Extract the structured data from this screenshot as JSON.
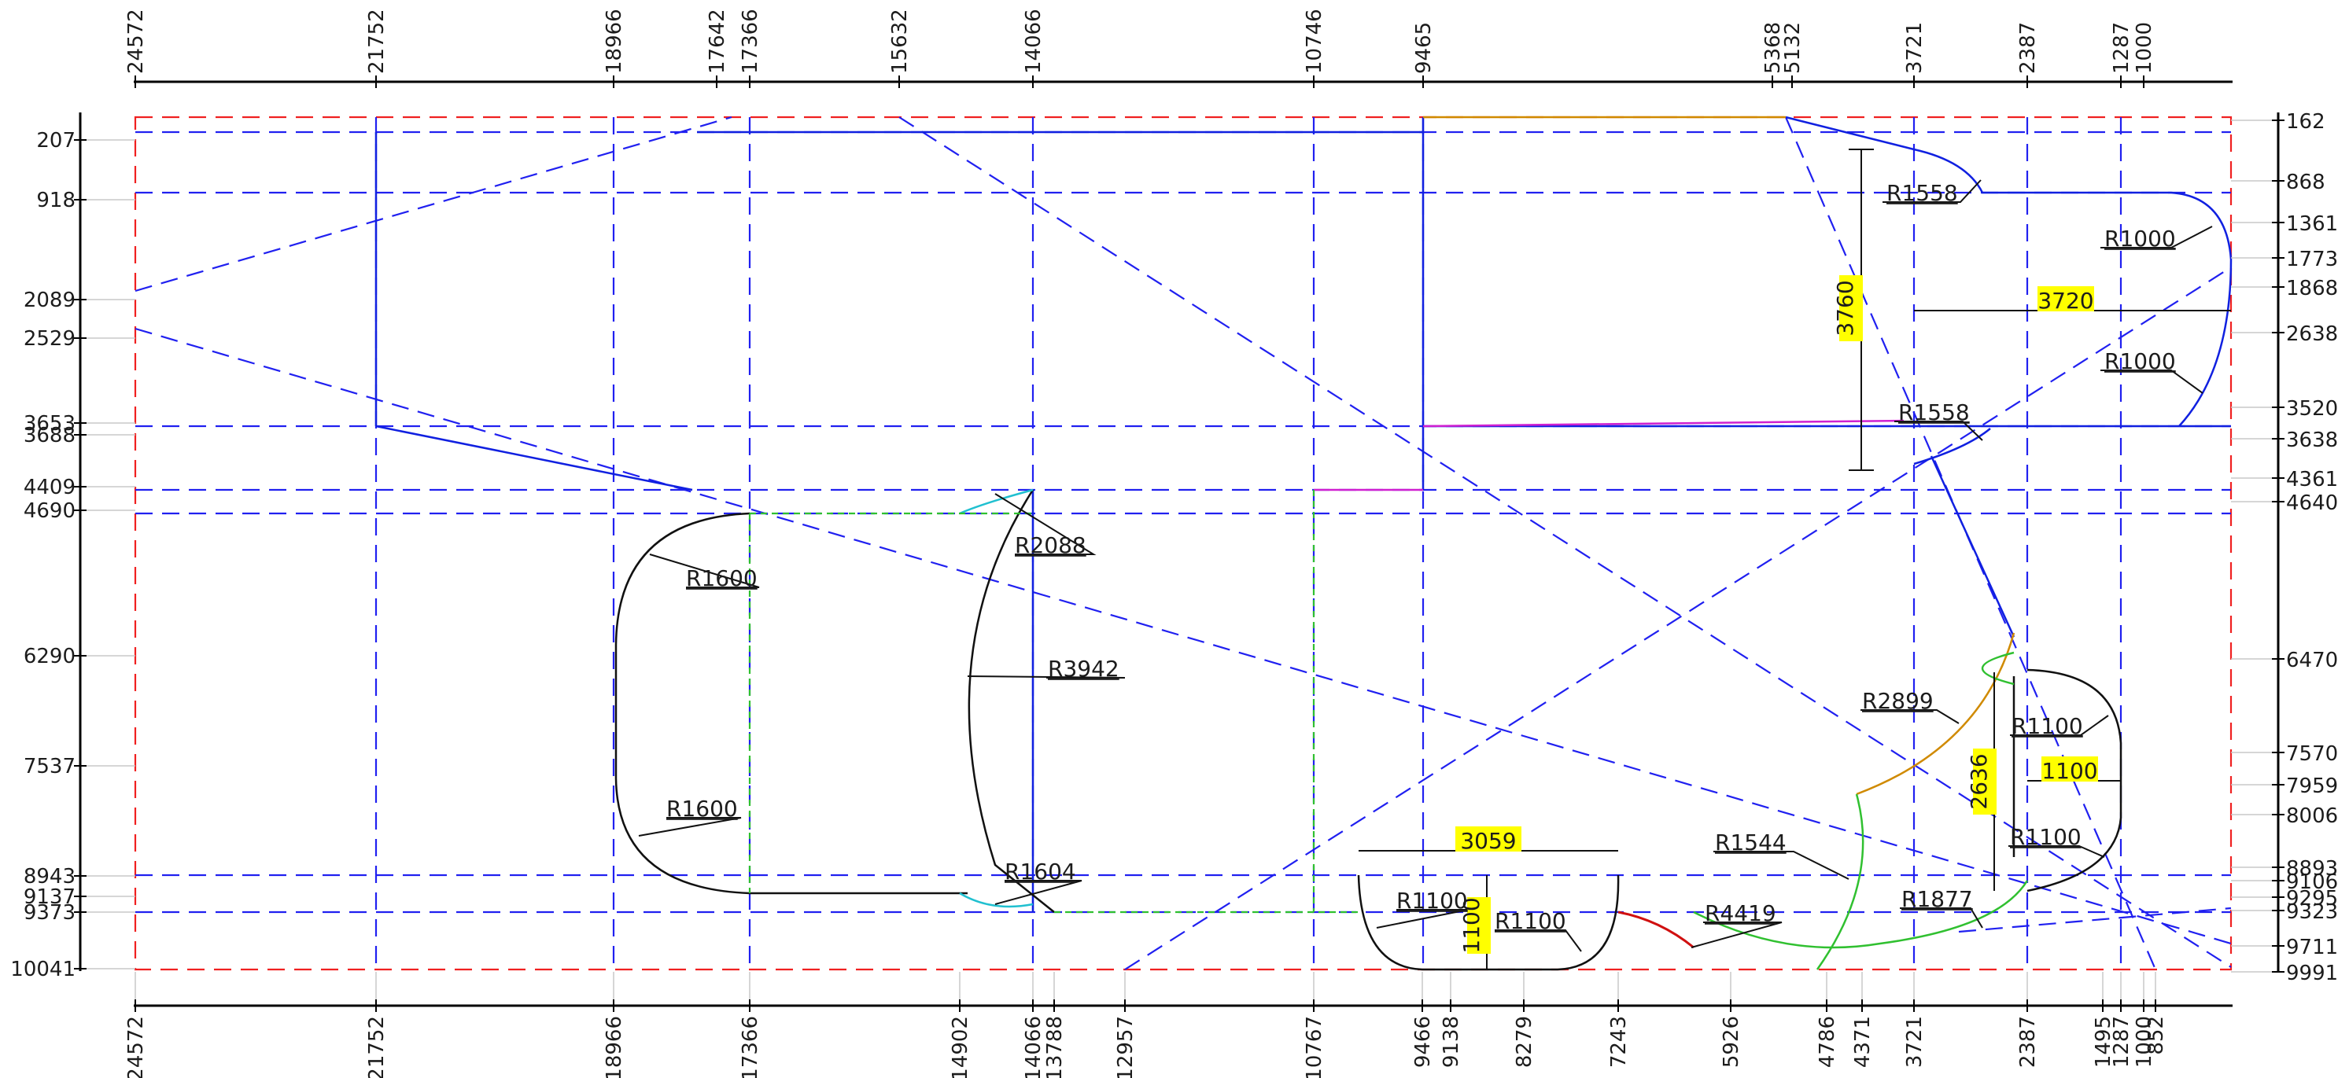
{
  "top_axis_labels": [
    "24572",
    "21752",
    "18966",
    "17642",
    "17366",
    "15632",
    "14066",
    "10746",
    "9465",
    "5368",
    "5132",
    "3721",
    "2387",
    "1287",
    "1000"
  ],
  "bottom_axis_labels": [
    "24572",
    "21752",
    "18966",
    "17366",
    "14902",
    "14066",
    "13788",
    "12957",
    "10767",
    "9466",
    "9138",
    "8279",
    "7243",
    "5926",
    "4786",
    "4371",
    "3721",
    "2387",
    "1495",
    "1287",
    "1000",
    "852"
  ],
  "left_axis_labels": [
    "207",
    "918",
    "2089",
    "2529",
    "3653",
    "3688",
    "4409",
    "4690",
    "6290",
    "7537",
    "8943",
    "9137",
    "9373",
    "10041"
  ],
  "right_axis_labels": [
    "162",
    "868",
    "1361",
    "1773",
    "1868",
    "2638",
    "3520",
    "3638",
    "4361",
    "4640",
    "6470",
    "7570",
    "7959",
    "8006",
    "8893",
    "9106",
    "9295",
    "9323",
    "9711",
    "9991"
  ],
  "radius_labels": [
    "R1558",
    "R1000",
    "R1000",
    "R1558",
    "R1600",
    "R2088",
    "R3942",
    "R1600",
    "R1604",
    "R1100",
    "R1100",
    "R2899",
    "R1100",
    "R1100",
    "R1544",
    "R4419",
    "R1877"
  ],
  "dimension_labels": [
    "3760",
    "3720",
    "1100",
    "3059",
    "1100",
    "2636"
  ],
  "colors": {
    "construction": "#2020f0",
    "border": "#f02020",
    "outline": "#111111",
    "highlight": "#ffff00",
    "orange": "#d08a00",
    "green": "#30c030",
    "red": "#d01010",
    "cyan": "#20c0d0"
  }
}
